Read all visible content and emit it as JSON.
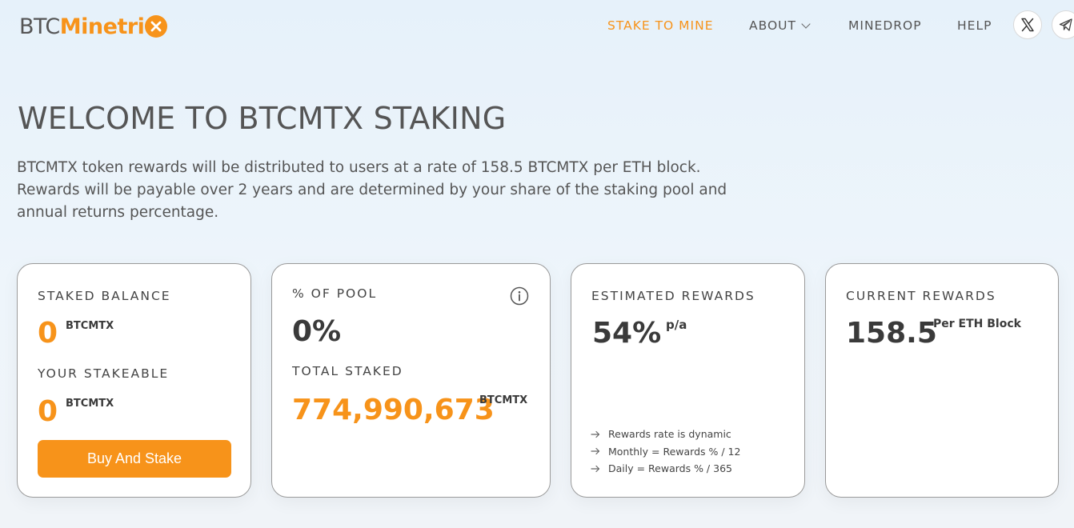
{
  "header": {
    "logo": {
      "part1": "BTC",
      "part2": "Minetri"
    },
    "nav": {
      "stake_to_mine": "STAKE TO MINE",
      "about": "ABOUT",
      "minedrop": "MINEDROP",
      "help": "HELP"
    },
    "social_icons": [
      "x-icon",
      "telegram-icon"
    ]
  },
  "hero": {
    "title": "WELCOME TO BTCMTX STAKING",
    "description": "BTCMTX token rewards will be distributed to users at a rate of 158.5 BTCMTX per ETH block. Rewards will be payable over 2 years and are determined by your share of the staking pool and annual returns percentage."
  },
  "cards": {
    "staked": {
      "label": "STAKED BALANCE",
      "value": "0",
      "unit": "BTCMTX",
      "stakeable_label": "YOUR STAKEABLE",
      "stakeable_value": "0",
      "stakeable_unit": "BTCMTX",
      "button": "Buy And Stake"
    },
    "pool": {
      "label": "% OF POOL",
      "value": "0%",
      "total_label": "TOTAL STAKED",
      "total_value": "774,990,673",
      "total_unit": "BTCMTX"
    },
    "estimated": {
      "label": "ESTIMATED REWARDS",
      "value": "54%",
      "suffix": "p/a",
      "notes": [
        "Rewards rate is dynamic",
        "Monthly = Rewards % / 12",
        "Daily = Rewards % / 365"
      ]
    },
    "current": {
      "label": "CURRENT REWARDS",
      "value": "158.5",
      "unit": "Per ETH Block"
    }
  },
  "colors": {
    "accent": "#f7931a",
    "text": "#555555",
    "background": "#e6f1fa"
  }
}
